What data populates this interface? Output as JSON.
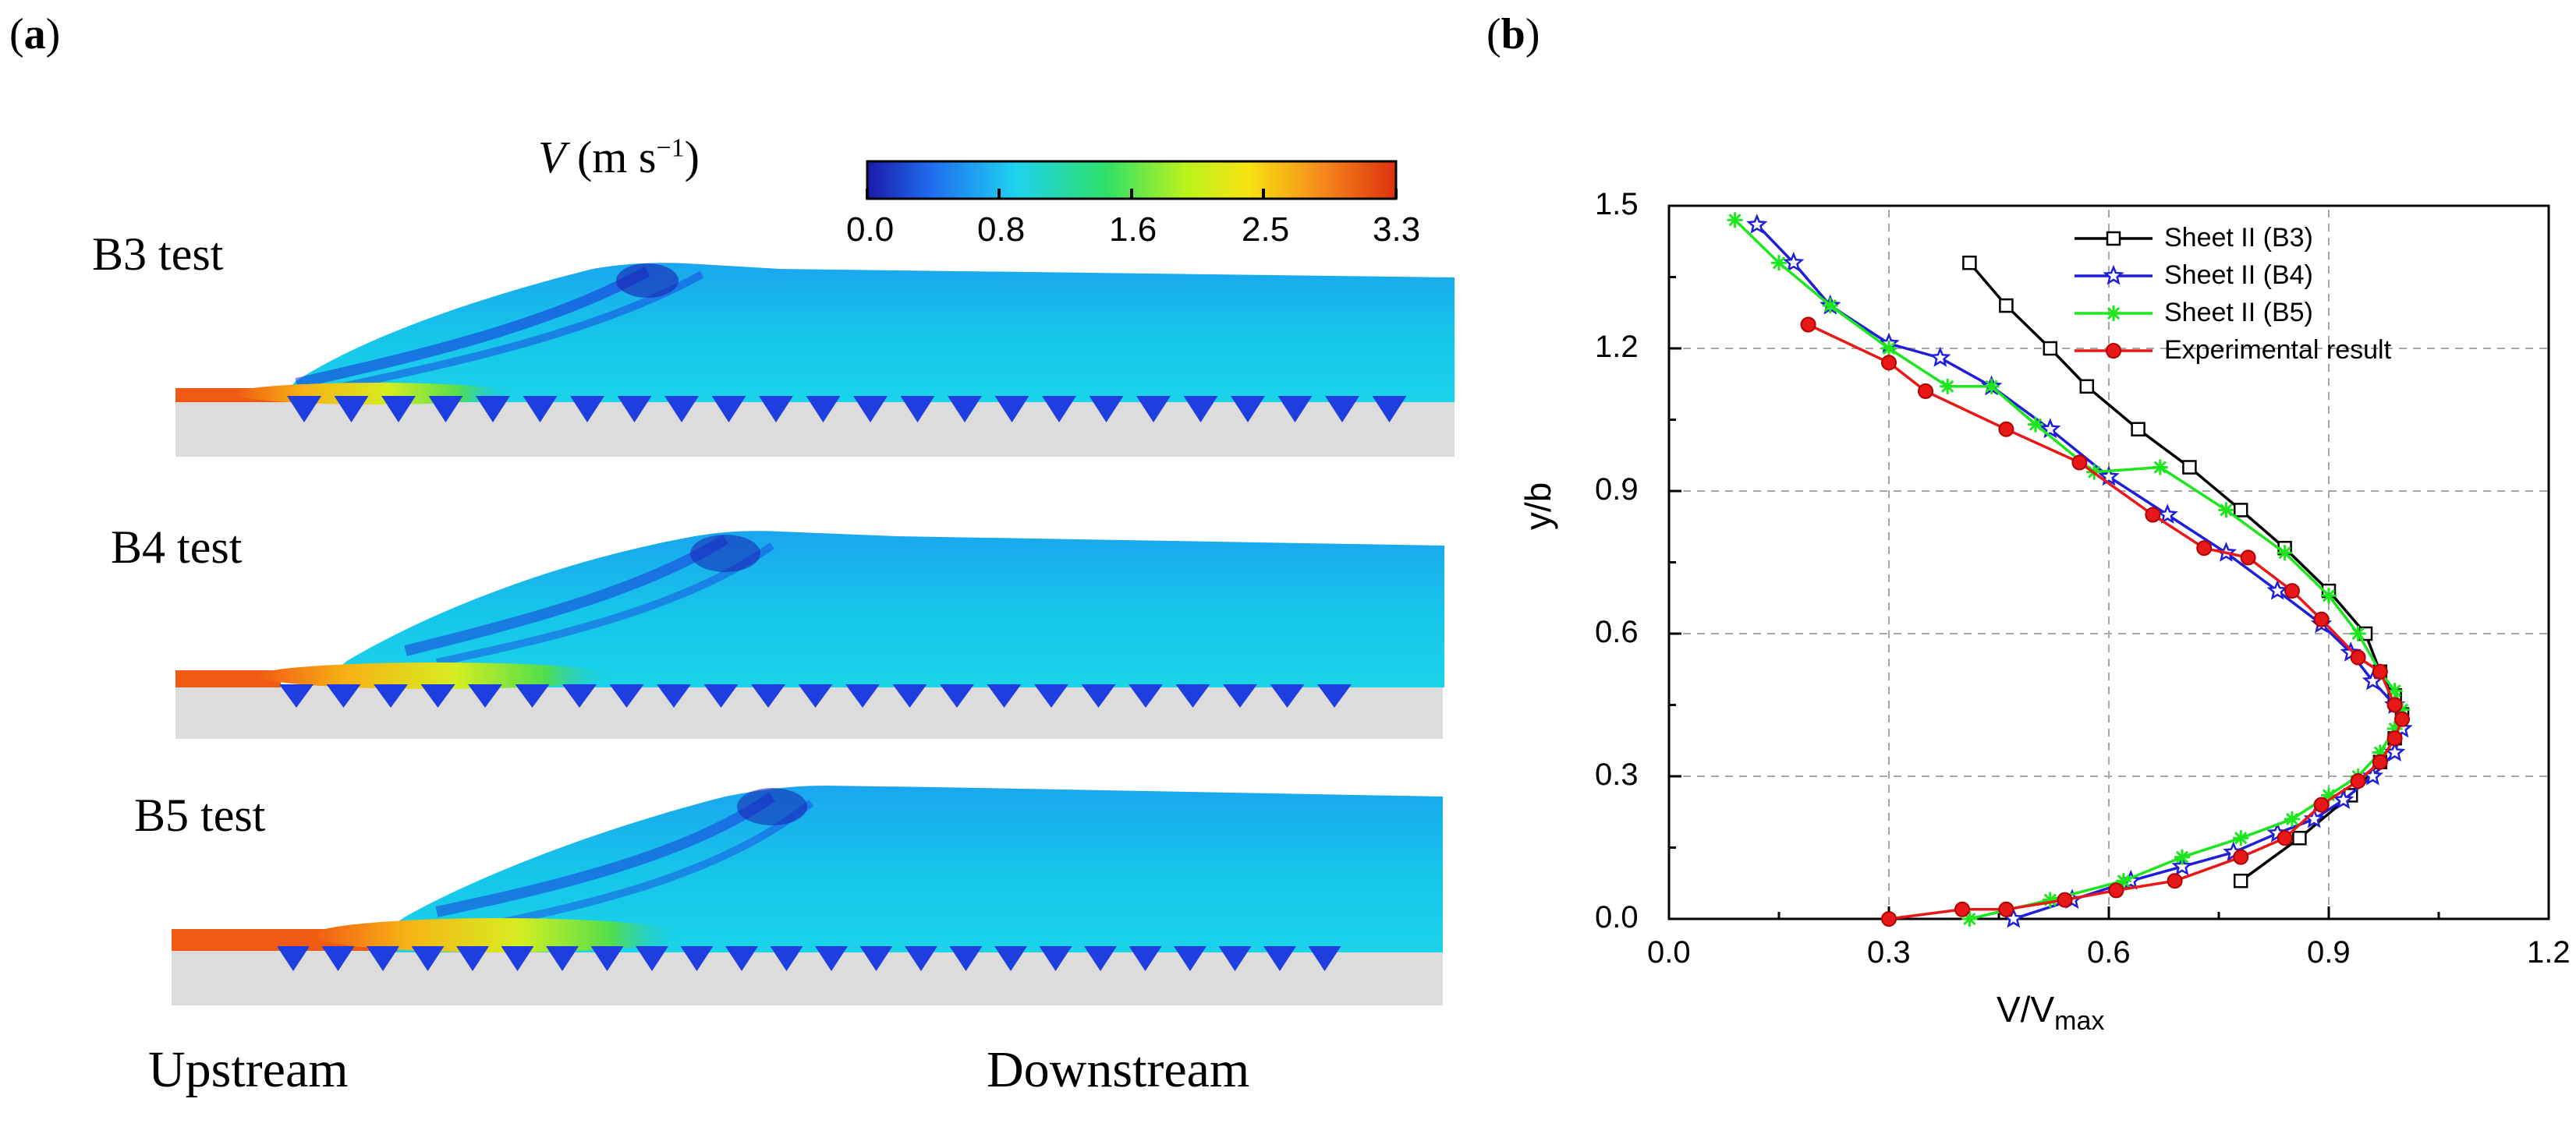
{
  "panel_a": {
    "label_open": "(",
    "label_letter": "a",
    "label_close": ")",
    "colorbar": {
      "var_symbol": "V",
      "units_text": "(m s",
      "units_exp": "−1",
      "units_close": ")",
      "ticks": [
        "0.0",
        "0.8",
        "1.6",
        "2.5",
        "3.3"
      ],
      "colors": [
        "#1a1aa8",
        "#1f6cf0",
        "#1fd2ef",
        "#2de06a",
        "#b9f21c",
        "#f7e312",
        "#f58a1a",
        "#e03010"
      ]
    },
    "tests": [
      {
        "name": "B3 test"
      },
      {
        "name": "B4 test"
      },
      {
        "name": "B5 test"
      }
    ],
    "upstream_label": "Upstream",
    "downstream_label": "Downstream",
    "colors": {
      "flow_base": "#16c4ea",
      "bed": "#dcdcdc",
      "jet": "#f25a14"
    }
  },
  "panel_b": {
    "label_open": "(",
    "label_letter": "b",
    "label_close": ")"
  },
  "chart_data": {
    "type": "line",
    "xlabel": "V/V",
    "xlabel_sub": "max",
    "ylabel": "y/b",
    "xlim": [
      0.0,
      1.2
    ],
    "ylim": [
      0.0,
      1.5
    ],
    "xticks": [
      "0.0",
      "0.3",
      "0.6",
      "0.9",
      "1.2"
    ],
    "yticks": [
      "0.0",
      "0.3",
      "0.6",
      "0.9",
      "1.2",
      "1.5"
    ],
    "grid": true,
    "legend_position": "top-right",
    "series": [
      {
        "name": "Sheet II (B3)",
        "color": "#000000",
        "marker": "square",
        "x": [
          0.78,
          0.86,
          0.93,
          0.97,
          0.99,
          1.0,
          0.99,
          0.97,
          0.95,
          0.9,
          0.84,
          0.78,
          0.71,
          0.64,
          0.57,
          0.52,
          0.46,
          0.41
        ],
        "y": [
          0.08,
          0.17,
          0.26,
          0.33,
          0.38,
          0.43,
          0.47,
          0.52,
          0.6,
          0.69,
          0.78,
          0.86,
          0.95,
          1.03,
          1.12,
          1.2,
          1.29,
          1.38
        ]
      },
      {
        "name": "Sheet II (B4)",
        "color": "#1f1fd8",
        "marker": "star",
        "x": [
          0.47,
          0.55,
          0.63,
          0.7,
          0.77,
          0.83,
          0.88,
          0.92,
          0.96,
          0.99,
          1.0,
          0.99,
          0.96,
          0.93,
          0.89,
          0.83,
          0.76,
          0.68,
          0.6,
          0.52,
          0.44,
          0.37,
          0.3,
          0.22,
          0.17,
          0.12
        ],
        "y": [
          0.0,
          0.04,
          0.08,
          0.11,
          0.14,
          0.18,
          0.21,
          0.25,
          0.3,
          0.35,
          0.4,
          0.45,
          0.5,
          0.56,
          0.62,
          0.69,
          0.77,
          0.85,
          0.93,
          1.03,
          1.12,
          1.18,
          1.21,
          1.29,
          1.38,
          1.46
        ]
      },
      {
        "name": "Sheet II (B5)",
        "color": "#1ee61e",
        "marker": "asterisk",
        "x": [
          0.41,
          0.52,
          0.62,
          0.7,
          0.78,
          0.85,
          0.9,
          0.94,
          0.97,
          0.99,
          1.0,
          0.99,
          0.97,
          0.94,
          0.9,
          0.84,
          0.76,
          0.67,
          0.58,
          0.5,
          0.44,
          0.38,
          0.3,
          0.22,
          0.15,
          0.09
        ],
        "y": [
          0.0,
          0.04,
          0.08,
          0.13,
          0.17,
          0.21,
          0.26,
          0.3,
          0.35,
          0.4,
          0.44,
          0.48,
          0.52,
          0.6,
          0.68,
          0.77,
          0.86,
          0.95,
          0.94,
          1.04,
          1.12,
          1.12,
          1.2,
          1.29,
          1.38,
          1.47
        ]
      },
      {
        "name": "Experimental result",
        "color": "#e81818",
        "marker": "circle",
        "x": [
          0.3,
          0.4,
          0.46,
          0.54,
          0.61,
          0.69,
          0.78,
          0.84,
          0.89,
          0.94,
          0.97,
          0.99,
          1.0,
          0.99,
          0.97,
          0.94,
          0.89,
          0.85,
          0.79,
          0.73,
          0.66,
          0.56,
          0.46,
          0.35,
          0.3,
          0.19
        ],
        "y": [
          0.0,
          0.02,
          0.02,
          0.04,
          0.06,
          0.08,
          0.13,
          0.17,
          0.24,
          0.29,
          0.33,
          0.38,
          0.42,
          0.45,
          0.52,
          0.55,
          0.63,
          0.69,
          0.76,
          0.78,
          0.85,
          0.96,
          1.03,
          1.11,
          1.17,
          1.25
        ]
      }
    ]
  }
}
